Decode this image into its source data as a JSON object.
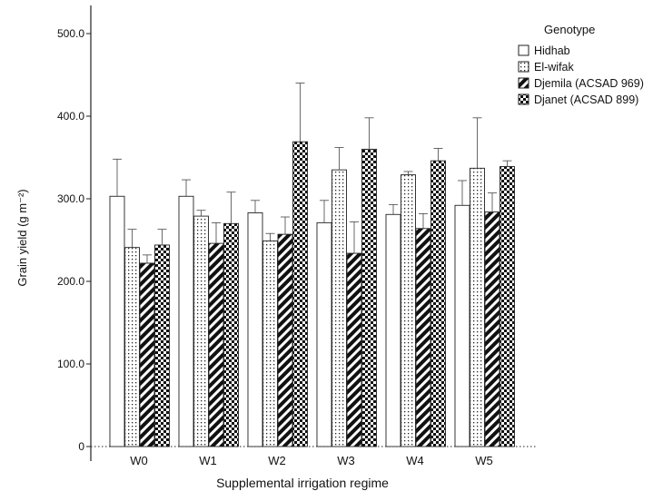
{
  "chart_data": {
    "type": "bar",
    "title": "",
    "xlabel": "Supplemental irrigation regime",
    "ylabel": "Grain yield (g m⁻²)",
    "ylim": [
      0,
      550
    ],
    "yticks": [
      0,
      100.0,
      200.0,
      300.0,
      400.0,
      500.0
    ],
    "ytick_labels": [
      "0",
      "100.0",
      "200.0",
      "300.0",
      "400.0",
      "500.0"
    ],
    "categories": [
      "W0",
      "W1",
      "W2",
      "W3",
      "W4",
      "W5"
    ],
    "legend_title": "Genotype",
    "legend_position": "top-right",
    "series": [
      {
        "name": "Hidhab",
        "pattern": "white",
        "values": [
          303,
          303,
          283,
          271,
          281,
          292
        ],
        "errors": [
          45,
          20,
          15,
          27,
          12,
          30
        ]
      },
      {
        "name": "El-wifak",
        "pattern": "dots",
        "values": [
          241,
          279,
          249,
          335,
          329,
          337
        ],
        "errors": [
          22,
          7,
          9,
          27,
          4,
          61
        ]
      },
      {
        "name": "Djemila (ACSAD 969)",
        "pattern": "stripes",
        "values": [
          222,
          246,
          257,
          234,
          264,
          284
        ],
        "errors": [
          10,
          25,
          21,
          38,
          18,
          23
        ]
      },
      {
        "name": "Djanet (ACSAD 899)",
        "pattern": "checker",
        "values": [
          244,
          270,
          369,
          360,
          346,
          339
        ],
        "errors": [
          19,
          38,
          71,
          38,
          15,
          7
        ]
      }
    ]
  }
}
